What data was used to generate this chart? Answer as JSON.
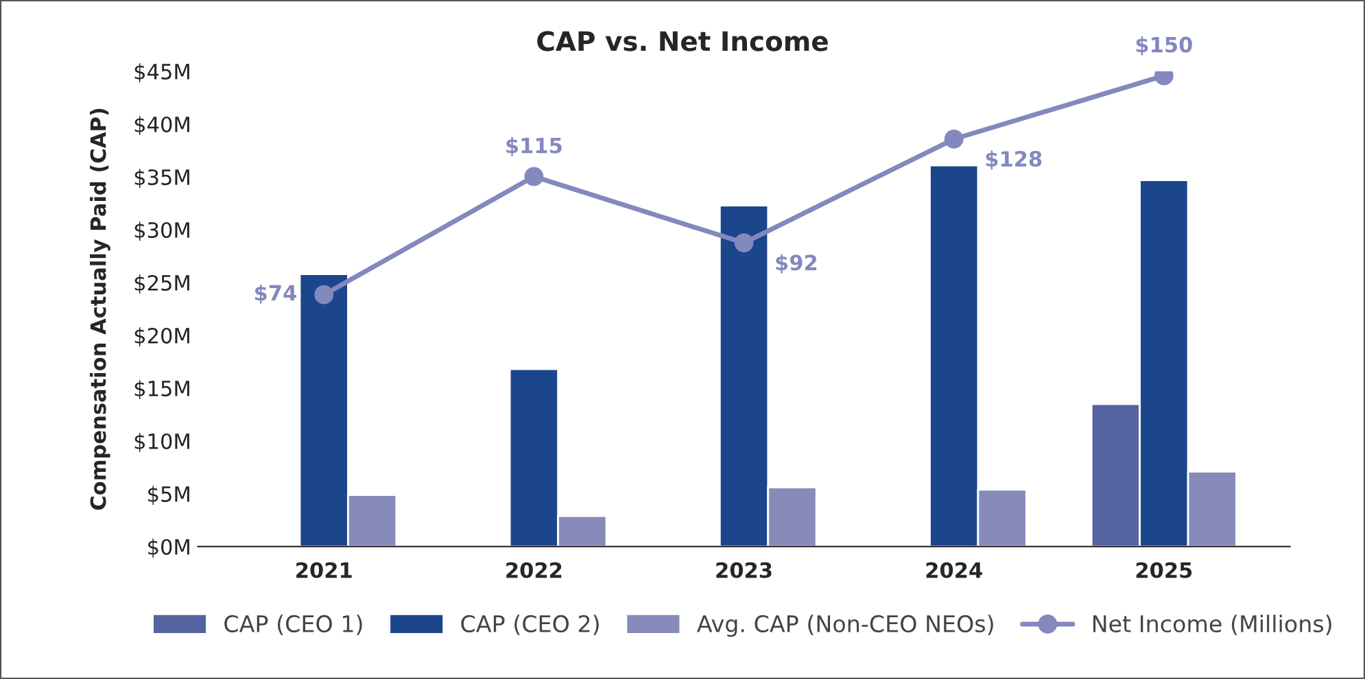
{
  "chart_data": {
    "type": "bar",
    "title": "CAP vs. Net Income",
    "ylabel": "Compensation Actually Paid (CAP)",
    "categories": [
      "2021",
      "2022",
      "2023",
      "2024",
      "2025"
    ],
    "series": [
      {
        "name": "CAP (CEO 1)",
        "color": "#5563a0",
        "values": [
          null,
          null,
          null,
          null,
          13.5
        ]
      },
      {
        "name": "CAP (CEO 2)",
        "color": "#1b468c",
        "values": [
          25.8,
          16.8,
          32.3,
          36.1,
          34.7
        ]
      },
      {
        "name": "Avg. CAP (Non-CEO NEOs)",
        "color": "#878bba",
        "values": [
          4.9,
          2.9,
          5.6,
          5.4,
          7.1
        ]
      },
      {
        "name": "Net Income (Millions)",
        "type": "line",
        "axis": "y2",
        "color": "#8388be",
        "marker": "circle",
        "values": [
          74,
          115,
          92,
          128,
          150
        ],
        "value_labels": [
          "$74",
          "$115",
          "$92",
          "$128",
          "$150"
        ]
      }
    ],
    "ylim": [
      0,
      45
    ],
    "yticks": [
      {
        "value": 0,
        "label": "$0M"
      },
      {
        "value": 5,
        "label": "$5M"
      },
      {
        "value": 10,
        "label": "$10M"
      },
      {
        "value": 15,
        "label": "$15M"
      },
      {
        "value": 20,
        "label": "$20M"
      },
      {
        "value": 25,
        "label": "$25M"
      },
      {
        "value": 30,
        "label": "$30M"
      },
      {
        "value": 35,
        "label": "$35M"
      },
      {
        "value": 40,
        "label": "$40M"
      },
      {
        "value": 45,
        "label": "$45M"
      }
    ],
    "tick_labels": [
      "x",
      "y"
    ],
    "legend": "bottom",
    "grid": false
  }
}
